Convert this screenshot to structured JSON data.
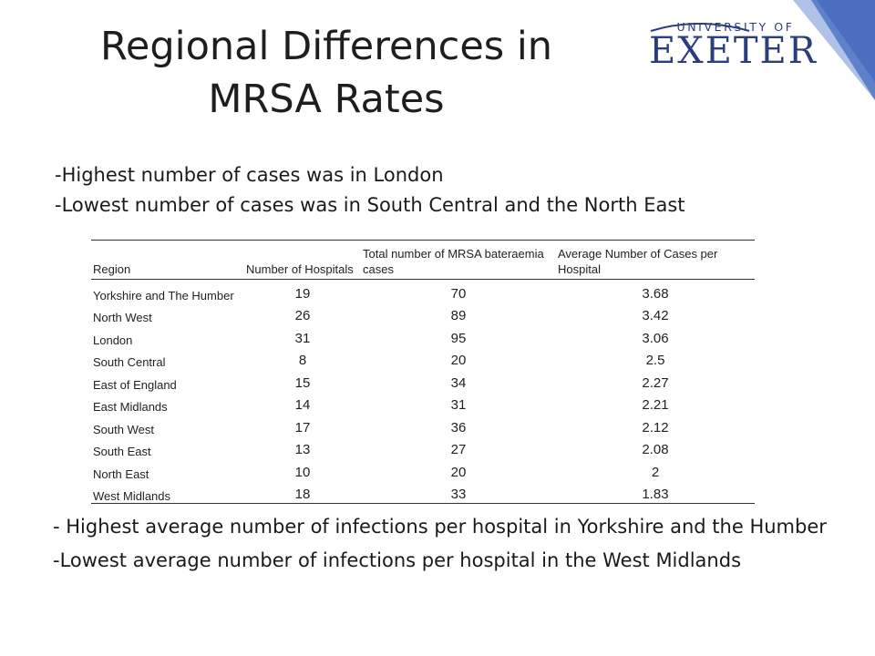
{
  "slide": {
    "title_line1": "Regional Differences in",
    "title_line2": "MRSA Rates",
    "logo_top": "UNIVERSITY OF",
    "logo_word": "EXETER",
    "colors": {
      "accent_band": "#4a6fc1",
      "logo_text": "#2a3d7c"
    }
  },
  "bullets_top": [
    "-Highest number of cases was in London",
    "-Lowest number of cases was in South Central and the North East"
  ],
  "table": {
    "headers": [
      "Region",
      "Number of Hospitals",
      "Total number of MRSA bateraemia cases",
      "Average Number of Cases per Hospital"
    ],
    "rows": [
      {
        "region": "Yorkshire and The Humber",
        "hospitals": "19",
        "cases": "70",
        "average": "3.68"
      },
      {
        "region": "North West",
        "hospitals": "26",
        "cases": "89",
        "average": "3.42"
      },
      {
        "region": "London",
        "hospitals": "31",
        "cases": "95",
        "average": "3.06"
      },
      {
        "region": "South Central",
        "hospitals": "8",
        "cases": "20",
        "average": "2.5"
      },
      {
        "region": "East of England",
        "hospitals": "15",
        "cases": "34",
        "average": "2.27"
      },
      {
        "region": "East Midlands",
        "hospitals": "14",
        "cases": "31",
        "average": "2.21"
      },
      {
        "region": "South West",
        "hospitals": "17",
        "cases": "36",
        "average": "2.12"
      },
      {
        "region": "South East",
        "hospitals": "13",
        "cases": "27",
        "average": "2.08"
      },
      {
        "region": "North East",
        "hospitals": "10",
        "cases": "20",
        "average": "2"
      },
      {
        "region": "West Midlands",
        "hospitals": "18",
        "cases": "33",
        "average": "1.83"
      }
    ]
  },
  "bullets_bottom": [
    "- Highest average number of infections per hospital in Yorkshire and the Humber",
    "-Lowest average number of infections per hospital in the West Midlands"
  ]
}
